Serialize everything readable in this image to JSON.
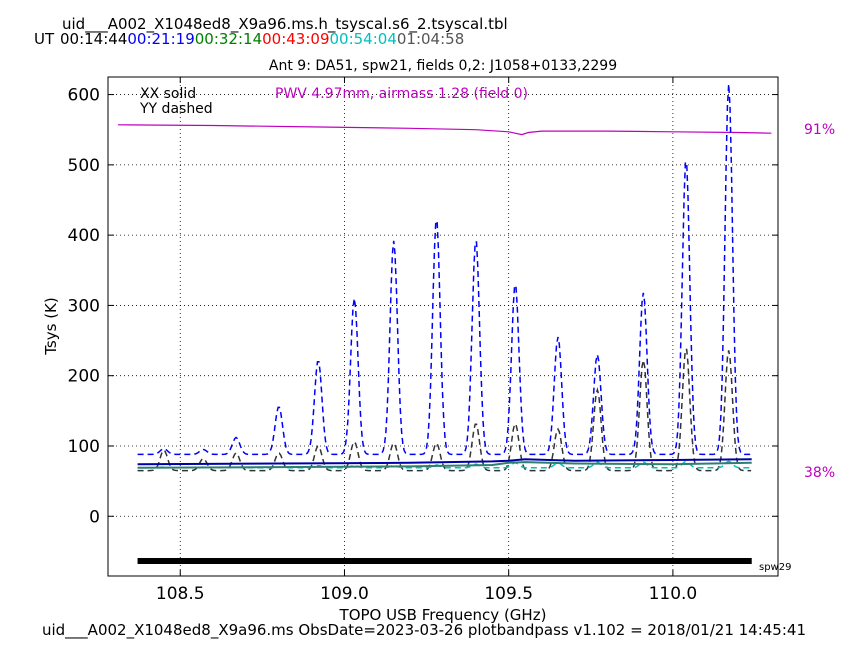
{
  "header": {
    "table_title": "uid___A002_X1048ed8_X9a96.ms.h_tsyscal.s6_2.tsyscal.tbl",
    "ut_label": "UT",
    "times": [
      {
        "text": "00:14:44",
        "color": "#000000"
      },
      {
        "text": "00:21:19",
        "color": "#0000ff"
      },
      {
        "text": "00:32:14",
        "color": "#008000"
      },
      {
        "text": "00:43:09",
        "color": "#ff0000"
      },
      {
        "text": "00:54:04",
        "color": "#00bfbf"
      },
      {
        "text": "01:04:58",
        "color": "#555555"
      }
    ],
    "subtitle": "Ant 9: DA51,  spw21,  fields 0,2: J1058+0133,2299"
  },
  "footer": "uid___A002_X1048ed8_X9a96.ms  ObsDate=2023-03-26   plotbandpass v1.102 = 2018/01/21 14:45:41",
  "chart_data": {
    "type": "line",
    "xlabel": "TOPO USB Frequency (GHz)",
    "ylabel": "Tsys (K)",
    "xlim": [
      108.28,
      110.32
    ],
    "ylim": [
      -85,
      625
    ],
    "xticks": [
      108.5,
      109.0,
      109.5,
      110.0
    ],
    "xtick_labels": [
      "108.5",
      "109.0",
      "109.5",
      "110.0"
    ],
    "yticks": [
      0,
      100,
      200,
      300,
      400,
      500,
      600
    ],
    "ytick_labels": [
      "0",
      "100",
      "200",
      "300",
      "400",
      "500",
      "600"
    ],
    "grid": true,
    "legend": {
      "xx": "XX solid",
      "yy": "YY dashed",
      "placement": "top-left"
    },
    "pwv_label": "PWV 4.97mm, airmass 1.28 (field 0)",
    "pwv_color": "#bf00bf",
    "right_labels": {
      "top": "91%",
      "bottom": "38%",
      "color": "#bf00bf"
    },
    "spw_bar": {
      "x": [
        108.37,
        110.24
      ],
      "label": "spw29"
    },
    "atm_transmission": {
      "color": "#bf00bf",
      "x": [
        108.31,
        108.6,
        108.9,
        109.2,
        109.4,
        109.5,
        109.54,
        109.56,
        109.6,
        109.8,
        110.0,
        110.2,
        110.3
      ],
      "y": [
        557,
        556,
        554,
        552,
        550,
        547,
        543,
        546,
        548,
        548,
        547,
        546,
        545
      ]
    },
    "xx_series": [
      {
        "name": "",
        "color": "#0000aa",
        "x": [
          108.37,
          108.8,
          109.2,
          109.45,
          109.5,
          109.55,
          109.7,
          110.0,
          110.24
        ],
        "y": [
          74,
          75,
          76,
          78,
          79,
          81,
          79,
          80,
          81
        ]
      },
      {
        "name": "",
        "color": "#2f7f6f",
        "x": [
          108.37,
          108.8,
          109.2,
          109.45,
          109.5,
          109.55,
          109.7,
          110.0,
          110.24
        ],
        "y": [
          69,
          70,
          71,
          73,
          76,
          77,
          75,
          74,
          76
        ]
      }
    ],
    "yy_peaks": [
      108.45,
      108.57,
      108.67,
      108.8,
      108.92,
      109.03,
      109.15,
      109.28,
      109.4,
      109.52,
      109.65,
      109.77,
      109.91,
      110.04,
      110.17
    ],
    "yy_series": [
      {
        "name": "",
        "color": "#0000ff",
        "base": 88,
        "peaks": [
          96,
          95,
          112,
          156,
          222,
          310,
          392,
          425,
          395,
          332,
          255,
          230,
          318,
          510,
          615
        ]
      },
      {
        "name": "",
        "color": "#333333",
        "base": 65,
        "peaks": [
          94,
          82,
          90,
          90,
          100,
          106,
          104,
          104,
          132,
          132,
          124,
          180,
          222,
          240,
          236
        ]
      },
      {
        "name": "",
        "color": "#00bfbf",
        "base": 69,
        "peaks": [
          70,
          70,
          70,
          70,
          72,
          72,
          72,
          73,
          74,
          76,
          76,
          77,
          77,
          78,
          78
        ]
      }
    ]
  }
}
